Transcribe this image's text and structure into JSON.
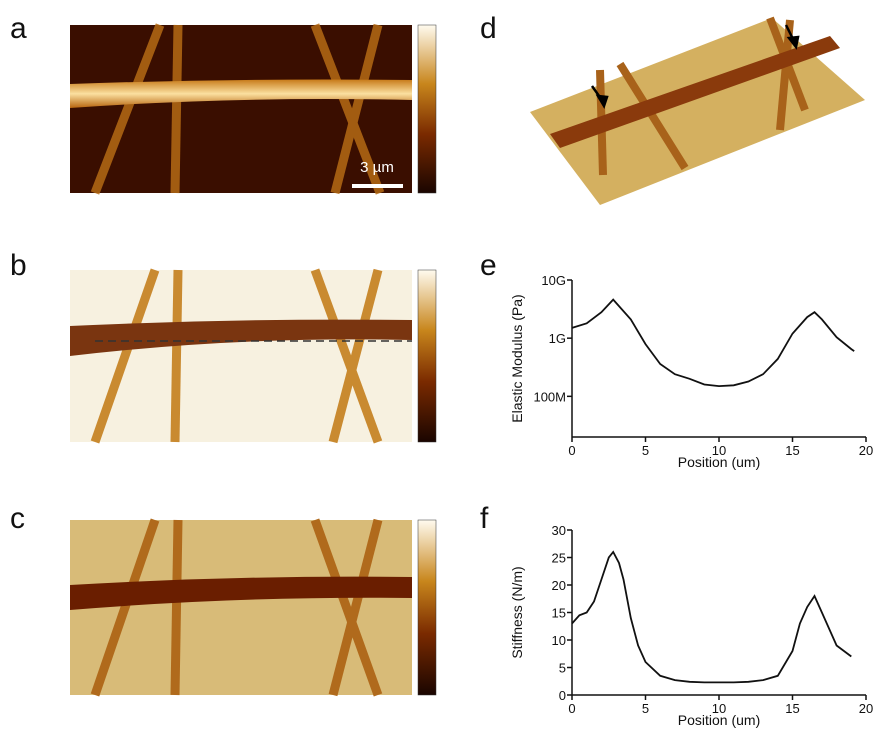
{
  "panels": {
    "a": "a",
    "b": "b",
    "c": "c",
    "d": "d",
    "e": "e",
    "f": "f"
  },
  "scale_bar": "3 µm",
  "chart_data": [
    {
      "type": "line",
      "y_label": "Elastic Modulus (Pa)",
      "x_label": "Position (um)",
      "yscale": "log",
      "color": "#111111",
      "xlim": [
        0,
        20
      ],
      "xticks": [
        0,
        5,
        10,
        15,
        20
      ],
      "ylim": [
        20000000,
        10000000000
      ],
      "yticks": [
        {
          "value": 10000000000,
          "label": "10G"
        },
        {
          "value": 1000000000,
          "label": "1G"
        },
        {
          "value": 100000000,
          "label": "100M"
        }
      ],
      "x": [
        0,
        1,
        2,
        2.8,
        4,
        5,
        6,
        7,
        8,
        9,
        10,
        11,
        12,
        13,
        14,
        15,
        16,
        16.5,
        17,
        18,
        19,
        19.2
      ],
      "values": [
        1500000000,
        1800000000,
        2800000000,
        4600000000,
        2100000000,
        790000000,
        360000000,
        240000000,
        200000000,
        160000000,
        150000000,
        155000000,
        180000000,
        240000000,
        440000000,
        1200000000,
        2300000000,
        2800000000,
        2100000000,
        1040000000,
        650000000,
        600000000
      ]
    },
    {
      "type": "line",
      "y_label": "Stiffness (N/m)",
      "x_label": "Position (um)",
      "color": "#111111",
      "xlim": [
        0,
        20
      ],
      "xticks": [
        0,
        5,
        10,
        15,
        20
      ],
      "ylim": [
        0,
        30
      ],
      "yticks": [
        0,
        5,
        10,
        15,
        20,
        25,
        30
      ],
      "x": [
        0,
        0.5,
        1,
        1.5,
        2,
        2.5,
        2.8,
        3.2,
        3.5,
        4,
        4.5,
        5,
        6,
        7,
        8,
        9,
        10,
        11,
        12,
        13,
        14,
        15,
        15.5,
        16,
        16.5,
        17,
        18,
        19
      ],
      "values": [
        13,
        14.5,
        15,
        17,
        21,
        25,
        26,
        24,
        21,
        14,
        9,
        6,
        3.5,
        2.7,
        2.4,
        2.3,
        2.3,
        2.3,
        2.4,
        2.7,
        3.5,
        8,
        13,
        16,
        18,
        15,
        9,
        7
      ]
    }
  ]
}
